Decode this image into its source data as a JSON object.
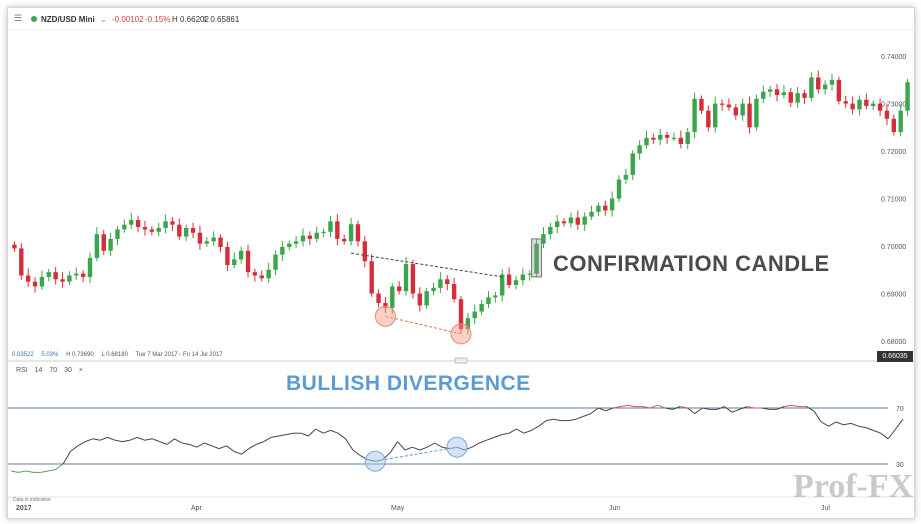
{
  "header": {
    "symbol": "NZD/USD Mini",
    "change": "-0.00102",
    "change_pct": "-0.15%",
    "high": "H 0.66202",
    "low": "L 0.65861"
  },
  "stats": {
    "a": "0.03522",
    "b": "5.03%",
    "high": "H 0.73690",
    "low": "L 0.68180",
    "range": "Tue 7 Mar 2017 - Fri 14 Jul 2017"
  },
  "current_price": "0.66035",
  "annotations": {
    "confirmation": "CONFIRMATION CANDLE",
    "divergence": "BULLISH DIVERGENCE"
  },
  "rsi_legend": [
    "RSI",
    "14",
    "70",
    "30",
    "×"
  ],
  "disclaimer": "Data is indicative",
  "watermark": "Prof-FX",
  "colors": {
    "up": "#3aa54a",
    "down": "#d42e3b",
    "rsi": "#444444",
    "overbought": "#e05555",
    "oversold": "#56a356",
    "level": "#5a7fa8"
  },
  "chart_data": [
    {
      "type": "candlestick",
      "ylim": [
        0.676,
        0.7455
      ],
      "yticks": [
        "0.74000",
        "0.73000",
        "0.72000",
        "0.71000",
        "0.70000",
        "0.69000",
        "0.68000"
      ],
      "xticks": [
        "2017",
        "Apr",
        "May",
        "Jun",
        "Jul"
      ],
      "close": [
        0.6995,
        0.6938,
        0.6925,
        0.6915,
        0.6935,
        0.6945,
        0.693,
        0.6925,
        0.6938,
        0.6942,
        0.6935,
        0.6975,
        0.7025,
        0.699,
        0.7015,
        0.7035,
        0.7045,
        0.7055,
        0.704,
        0.7035,
        0.703,
        0.7038,
        0.7052,
        0.7045,
        0.702,
        0.7038,
        0.7028,
        0.7005,
        0.701,
        0.7018,
        0.6998,
        0.696,
        0.6972,
        0.699,
        0.6945,
        0.6938,
        0.6932,
        0.695,
        0.6982,
        0.6998,
        0.7005,
        0.701,
        0.7022,
        0.7015,
        0.7028,
        0.703,
        0.7052,
        0.7015,
        0.701,
        0.7046,
        0.701,
        0.6968,
        0.69,
        0.688,
        0.687,
        0.6915,
        0.6905,
        0.6962,
        0.69,
        0.6875,
        0.6905,
        0.6912,
        0.693,
        0.692,
        0.6888,
        0.6825,
        0.6848,
        0.6862,
        0.6878,
        0.6892,
        0.6896,
        0.694,
        0.6918,
        0.6928,
        0.694,
        0.6942,
        0.7005,
        0.7025,
        0.704,
        0.7052,
        0.7048,
        0.706,
        0.7045,
        0.7062,
        0.7072,
        0.7085,
        0.7075,
        0.71,
        0.714,
        0.715,
        0.7195,
        0.7212,
        0.7228,
        0.7224,
        0.7234,
        0.7228,
        0.7228,
        0.7215,
        0.724,
        0.731,
        0.7285,
        0.725,
        0.73,
        0.7298,
        0.7292,
        0.7275,
        0.73,
        0.725,
        0.731,
        0.7325,
        0.733,
        0.7318,
        0.7324,
        0.7302,
        0.7322,
        0.7312,
        0.7355,
        0.733,
        0.734,
        0.735,
        0.7305,
        0.73,
        0.7288,
        0.7308,
        0.7295,
        0.73,
        0.7285,
        0.7268,
        0.724,
        0.7285,
        0.7345
      ],
      "rsi": {
        "levels": [
          70,
          30
        ],
        "ylim": [
          10,
          90
        ],
        "values": [
          25,
          24,
          25,
          24,
          24,
          25,
          26,
          30,
          39,
          43,
          46,
          48,
          47,
          49,
          47,
          46,
          47,
          49,
          47,
          48,
          46,
          44,
          48,
          45,
          44,
          42,
          45,
          43,
          41,
          43,
          39,
          37,
          41,
          44,
          46,
          49,
          50,
          51,
          52,
          52,
          50,
          55,
          52,
          54,
          52,
          48,
          40,
          36,
          33,
          32,
          33,
          38,
          46,
          40,
          42,
          40,
          42,
          45,
          42,
          41,
          42,
          40,
          42,
          45,
          47,
          49,
          51,
          52,
          55,
          52,
          54,
          57,
          61,
          62,
          61,
          61,
          62,
          64,
          66,
          70,
          68,
          70,
          71,
          72,
          71,
          71,
          70,
          72,
          70,
          69,
          71,
          70,
          66,
          70,
          69,
          69,
          71,
          67,
          69,
          71,
          70,
          70,
          69,
          69,
          71,
          72,
          71,
          71,
          68,
          60,
          57,
          60,
          58,
          59,
          57,
          56,
          54,
          52,
          48,
          55,
          62
        ]
      }
    }
  ]
}
